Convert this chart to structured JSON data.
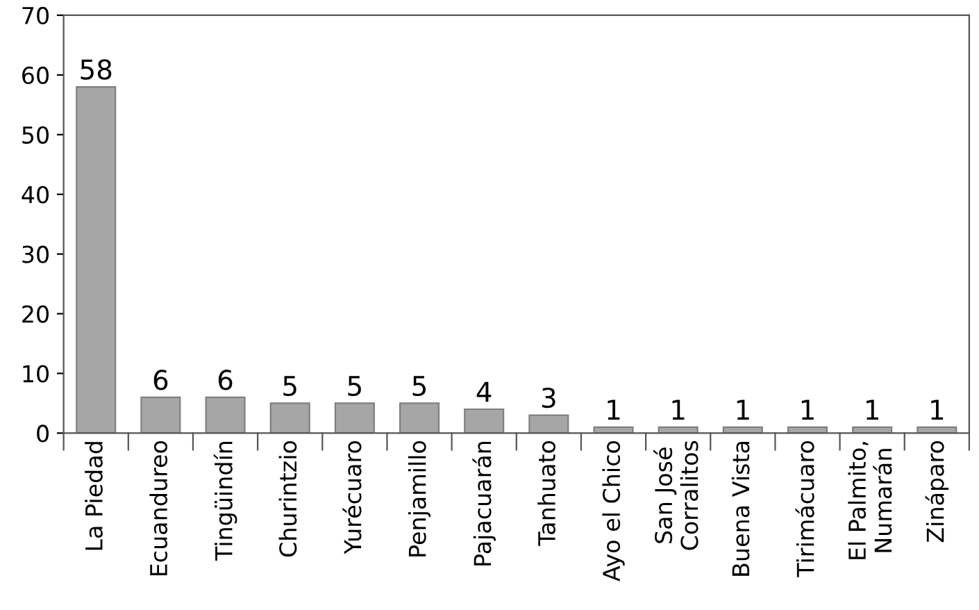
{
  "chart_data": {
    "type": "bar",
    "categories": [
      "La Piedad",
      "Ecuandureo",
      "Tingüindín",
      "Churintzio",
      "Yurécuaro",
      "Penjamillo",
      "Pajacuarán",
      "Tanhuato",
      "Ayo el Chico",
      "San José\nCorralitos",
      "Buena Vista",
      "Tirimácuaro",
      "El Palmito,\nNumarán",
      "Zináparo"
    ],
    "values": [
      58,
      6,
      6,
      5,
      5,
      5,
      4,
      3,
      1,
      1,
      1,
      1,
      1,
      1
    ],
    "color": "#a6a6a6",
    "ylim": [
      0,
      70
    ],
    "yticks": [
      0,
      10,
      20,
      30,
      40,
      50,
      60,
      70
    ],
    "data_labels": true,
    "grid": false,
    "legend": false
  }
}
